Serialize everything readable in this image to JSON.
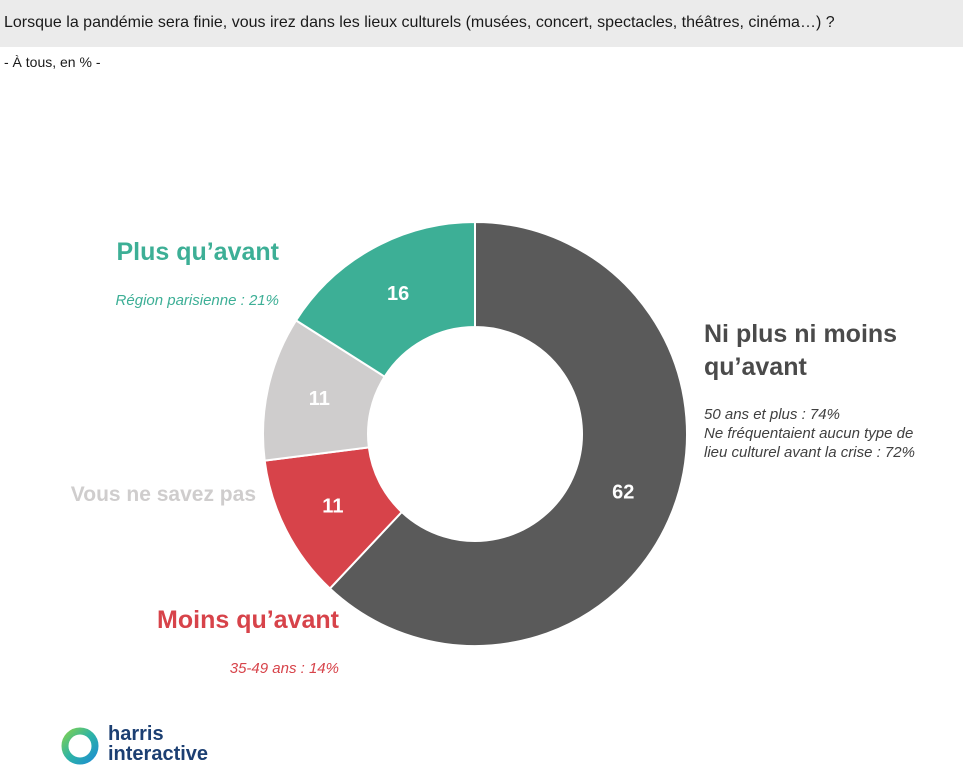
{
  "header": {
    "question": "Lorsque la pandémie sera finie, vous irez dans les lieux culturels (musées, concert, spectacles, théâtres, cinéma…) ?",
    "base": "- À tous, en % -"
  },
  "categories": {
    "plus": {
      "label": "Plus qu’avant",
      "note": "Région parisienne : 21%",
      "color": "#3daf96"
    },
    "ne_savez_pas": {
      "label": "Vous ne savez pas",
      "color": "#cfcdcd"
    },
    "moins": {
      "label": "Moins qu’avant",
      "note": "35-49 ans : 14%",
      "color": "#d7434a"
    },
    "ni_plus_ni_moins": {
      "label_line1": "Ni plus ni moins",
      "label_line2": "qu’avant",
      "note_line1": "50 ans et plus : 74%",
      "note_line2": "Ne fréquentaient aucun type de",
      "note_line3": "lieu culturel avant la crise : 72%",
      "color": "#5a5a5a",
      "label_color": "#4a4a4a"
    }
  },
  "chart_data": {
    "type": "pie",
    "subtype": "donut",
    "unit": "%",
    "slices": [
      {
        "label": "Ni plus ni moins qu’avant",
        "value": 62,
        "color": "#5a5a5a"
      },
      {
        "label": "Moins qu’avant",
        "value": 11,
        "color": "#d7434a"
      },
      {
        "label": "Vous ne savez pas",
        "value": 11,
        "color": "#cfcdcd"
      },
      {
        "label": "Plus qu’avant",
        "value": 16,
        "color": "#3daf96"
      }
    ],
    "start": "12 o'clock",
    "direction": "clockwise"
  },
  "logo": {
    "line1": "harris",
    "line2": "interactive"
  }
}
